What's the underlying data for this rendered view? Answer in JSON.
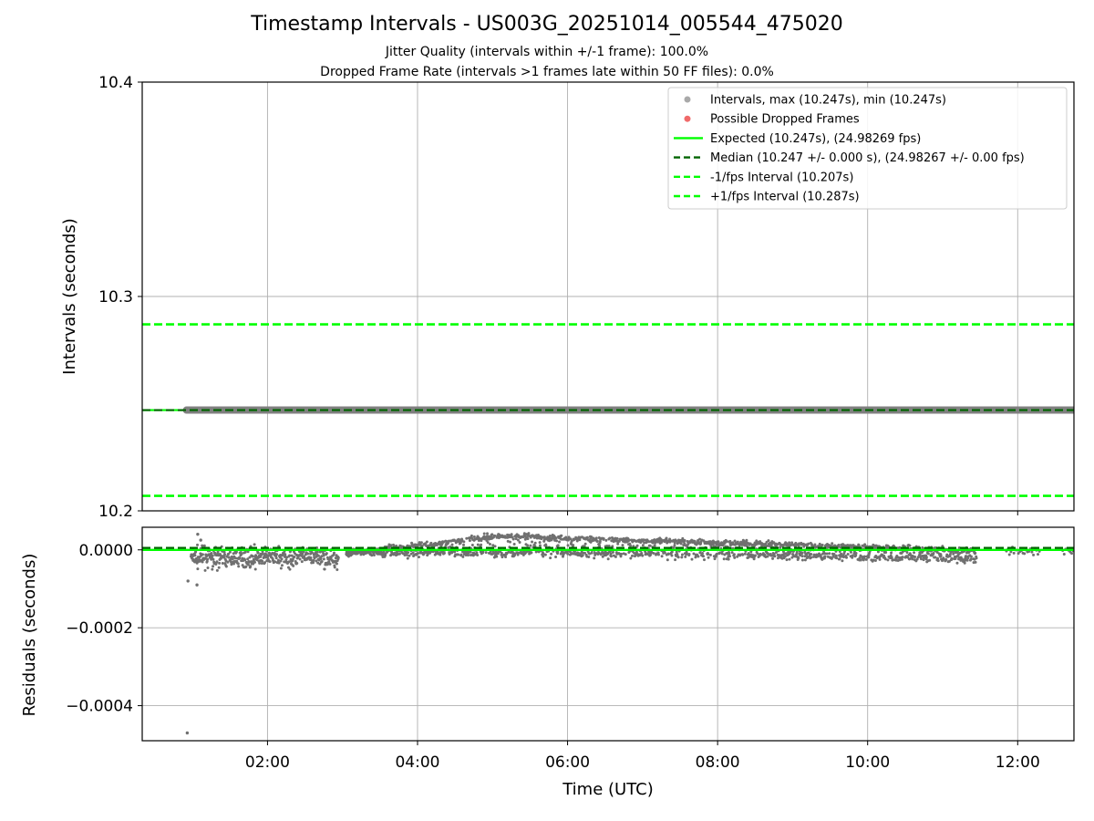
{
  "title": "Timestamp Intervals - US003G_20251014_005544_475020",
  "subtitle_jitter": "Jitter Quality (intervals within +/-1 frame): 100.0%",
  "subtitle_dropped": "Dropped Frame Rate (intervals >1 frames late within 50 FF files): 0.0%",
  "chart_data": [
    {
      "type": "scatter",
      "panel": "top",
      "ylabel": "Intervals (seconds)",
      "xlabel": "",
      "xlim_hours": [
        0.33,
        12.75
      ],
      "ylim": [
        10.2,
        10.4
      ],
      "yticks": [
        10.2,
        10.3,
        10.4
      ],
      "ytick_labels": [
        "10.2",
        "10.3",
        "10.4"
      ],
      "grid": true,
      "legend_position": "top-right",
      "legend": [
        {
          "label": "Intervals, max (10.247s), min (10.247s)",
          "kind": "marker",
          "color": "#a9a9a9"
        },
        {
          "label": "Possible Dropped Frames",
          "kind": "marker",
          "color": "#f06a6a"
        },
        {
          "label": "Expected (10.247s), (24.98269 fps)",
          "kind": "solid",
          "color": "#00ff00"
        },
        {
          "label": "Median (10.247 +/- 0.000 s), (24.98267 +/- 0.00 fps)",
          "kind": "dashed",
          "color": "#006400"
        },
        {
          "label": "-1/fps Interval (10.207s)",
          "kind": "dashed",
          "color": "#00ff00"
        },
        {
          "label": "+1/fps Interval (10.287s)",
          "kind": "dashed",
          "color": "#00ff00"
        }
      ],
      "series": [
        {
          "name": "Intervals",
          "x_start": 0.92,
          "x_end": 12.75,
          "y": 10.247,
          "color": "#808080"
        },
        {
          "name": "Expected",
          "y": 10.247,
          "color": "#00ff00",
          "style": "solid"
        },
        {
          "name": "Median",
          "y": 10.247,
          "color": "#006400",
          "style": "dashed"
        },
        {
          "name": "-1/fps Interval",
          "y": 10.207,
          "color": "#00ff00",
          "style": "dashed"
        },
        {
          "name": "+1/fps Interval",
          "y": 10.287,
          "color": "#00ff00",
          "style": "dashed"
        }
      ]
    },
    {
      "type": "scatter",
      "panel": "bottom",
      "ylabel": "Residuals (seconds)",
      "xlabel": "Time (UTC)",
      "xlim_hours": [
        0.33,
        12.75
      ],
      "xticks_hours": [
        2,
        4,
        6,
        8,
        10,
        12
      ],
      "xtick_labels": [
        "02:00",
        "04:00",
        "06:00",
        "08:00",
        "10:00",
        "12:00"
      ],
      "ylim": [
        -0.00049,
        5.8e-05
      ],
      "yticks": [
        0.0,
        -0.0002,
        -0.0004
      ],
      "ytick_labels": [
        "0.0000",
        "−0.0002",
        "−0.0004"
      ],
      "grid": true,
      "expected_line": {
        "y": 0.0,
        "color": "#00ff00",
        "style": "solid"
      },
      "median_line": {
        "y": 5e-06,
        "color": "#006400",
        "style": "dashed"
      },
      "residual_points_color": "#707070",
      "residual_outliers": [
        {
          "x": 0.93,
          "y": -0.00047
        },
        {
          "x": 1.06,
          "y": -9e-05
        },
        {
          "x": 0.94,
          "y": -8e-05
        },
        {
          "x": 1.07,
          "y": 4e-05
        },
        {
          "x": 1.11,
          "y": 2.5e-05
        }
      ]
    }
  ]
}
